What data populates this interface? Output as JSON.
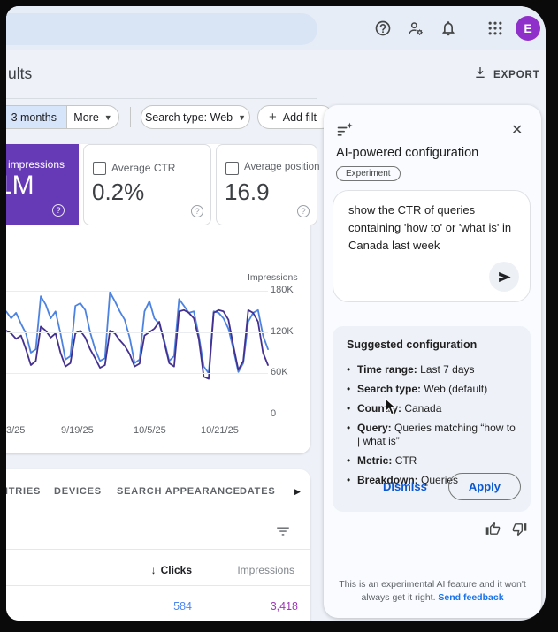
{
  "colors": {
    "accent_purple": "#6639b7",
    "chart_blue": "#4d83e0",
    "chart_purple": "#44318f",
    "link_blue": "#0b57d0",
    "clicks_blue": "#4d86ef",
    "impressions_purple": "#9c3bb5"
  },
  "topbar": {
    "avatar_letter": "E"
  },
  "header": {
    "title": "ults",
    "export_label": "EXPORT"
  },
  "filters": {
    "time_chip": "3 months",
    "more_chip": "More",
    "search_type_chip": "Search type: Web",
    "add_filter_chip": "Add filt"
  },
  "metrics": {
    "impressions": {
      "label": "impressions",
      "value": "1M"
    },
    "ctr": {
      "label": "Average CTR",
      "value": "0.2%"
    },
    "position": {
      "label": "Average position",
      "value": "16.9"
    }
  },
  "chart_data": {
    "type": "line",
    "legend_label": "Impressions",
    "ylabel": "Impressions",
    "ylim": [
      0,
      190
    ],
    "grid": true,
    "yticks": [
      {
        "label": "180K",
        "value": 180
      },
      {
        "label": "120K",
        "value": 120
      },
      {
        "label": "60K",
        "value": 60
      },
      {
        "label": "0",
        "value": 0
      }
    ],
    "xticks": [
      "3/25",
      "9/19/25",
      "10/5/25",
      "10/21/25"
    ],
    "series": [
      {
        "name": "impressions-current",
        "color": "#4d83e0",
        "values": [
          150,
          140,
          148,
          132,
          118,
          90,
          95,
          172,
          160,
          140,
          150,
          118,
          80,
          85,
          158,
          162,
          152,
          120,
          95,
          78,
          82,
          178,
          165,
          150,
          138,
          112,
          75,
          80,
          150,
          165,
          140,
          132,
          108,
          78,
          85,
          168,
          158,
          148,
          150,
          115,
          70,
          60,
          150,
          148,
          140,
          125,
          95,
          62,
          75,
          135,
          148,
          152,
          115,
          95
        ]
      },
      {
        "name": "impressions-previous",
        "color": "#44318f",
        "values": [
          122,
          118,
          110,
          115,
          95,
          72,
          78,
          128,
          122,
          112,
          118,
          90,
          70,
          75,
          118,
          122,
          112,
          95,
          82,
          68,
          72,
          122,
          118,
          108,
          100,
          88,
          70,
          74,
          115,
          120,
          125,
          135,
          105,
          75,
          70,
          150,
          152,
          148,
          140,
          110,
          55,
          52,
          148,
          152,
          150,
          138,
          100,
          65,
          78,
          152,
          148,
          135,
          90,
          72
        ]
      }
    ]
  },
  "tabs": {
    "items": [
      "NTRIES",
      "DEVICES",
      "SEARCH APPEARANCE",
      "DATES"
    ]
  },
  "table": {
    "columns": {
      "clicks": "Clicks",
      "impressions": "Impressions"
    },
    "rows": [
      {
        "clicks": "584",
        "impressions": "3,418"
      }
    ]
  },
  "ai_panel": {
    "title": "AI-powered configuration",
    "badge": "Experiment",
    "prompt_text": "show the CTR of queries containing 'how to' or 'what is' in Canada  last week",
    "suggested": {
      "title": "Suggested configuration",
      "items": [
        {
          "label": "Time range:",
          "value": "Last 7 days"
        },
        {
          "label": "Search type:",
          "value": "Web (default)"
        },
        {
          "label": "Country:",
          "value": "Canada"
        },
        {
          "label": "Query:",
          "value": "Queries matching “how to | what is”"
        },
        {
          "label": "Metric:",
          "value": "CTR"
        },
        {
          "label": "Breakdown:",
          "value": "Queries"
        }
      ],
      "dismiss_label": "Dismiss",
      "apply_label": "Apply"
    },
    "disclaimer": "This is an experimental AI feature and it won't always get it right.",
    "feedback_link": "Send feedback"
  }
}
